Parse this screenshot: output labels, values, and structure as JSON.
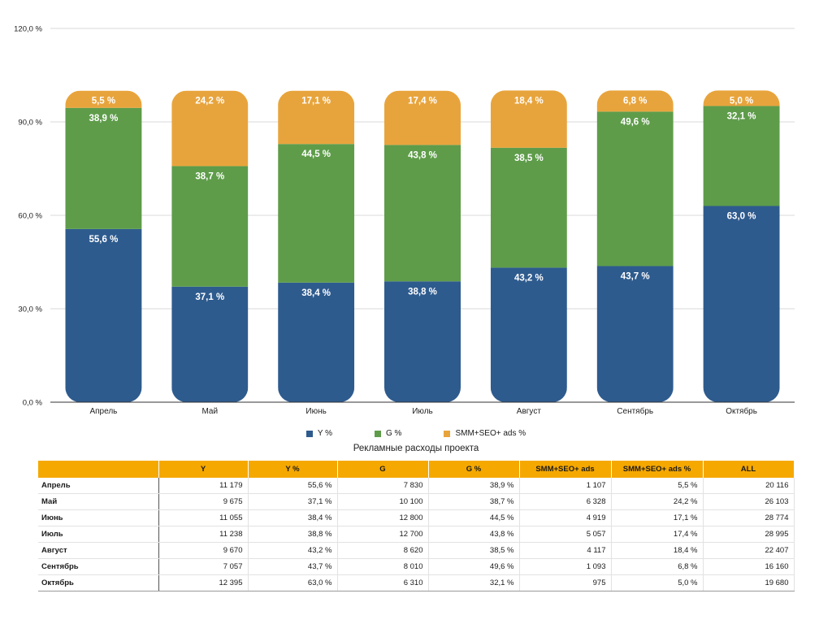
{
  "chart_data": {
    "type": "bar",
    "stacked": true,
    "categories": [
      "Апрель",
      "Май",
      "Июнь",
      "Июль",
      "Август",
      "Сентябрь",
      "Октябрь"
    ],
    "series": [
      {
        "name": "Y %",
        "color": "#2e5b8e",
        "values": [
          55.6,
          37.1,
          38.4,
          38.8,
          43.2,
          43.7,
          63.0
        ],
        "labels": [
          "55,6 %",
          "37,1 %",
          "38,4 %",
          "38,8 %",
          "43,2 %",
          "43,7 %",
          "63,0 %"
        ]
      },
      {
        "name": "G %",
        "color": "#5e9c4a",
        "values": [
          38.9,
          38.7,
          44.5,
          43.8,
          38.5,
          49.6,
          32.1
        ],
        "labels": [
          "38,9 %",
          "38,7 %",
          "44,5 %",
          "43,8 %",
          "38,5 %",
          "49,6 %",
          "32,1 %"
        ]
      },
      {
        "name": "SMM+SEO+ ads %",
        "color": "#e8a43c",
        "values": [
          5.5,
          24.2,
          17.1,
          17.4,
          18.4,
          6.8,
          5.0
        ],
        "labels": [
          "5,5 %",
          "24,2 %",
          "17,1 %",
          "17,4 %",
          "18,4 %",
          "6,8 %",
          "5,0 %"
        ]
      }
    ],
    "ylim": [
      0,
      120
    ],
    "yticks": [
      0,
      30,
      60,
      90,
      120
    ],
    "ytick_labels": [
      "0,0 %",
      "30,0 %",
      "60,0 %",
      "90,0 %",
      "120,0 %"
    ],
    "grid": true,
    "legend_position": "bottom-center"
  },
  "legend": {
    "items": [
      {
        "label": "Y %",
        "color": "#2e5b8e"
      },
      {
        "label": "G %",
        "color": "#5e9c4a"
      },
      {
        "label": "SMM+SEO+ ads %",
        "color": "#e8a43c"
      }
    ]
  },
  "table": {
    "caption": "Рекламные расходы проекта",
    "header_color": "#f5a800",
    "columns": [
      "",
      "Y",
      "Y %",
      "G",
      "G %",
      "SMM+SEO+ ads",
      "SMM+SEO+ ads %",
      "ALL"
    ],
    "rows": [
      [
        "Апрель",
        "11 179",
        "55,6 %",
        "7 830",
        "38,9 %",
        "1 107",
        "5,5 %",
        "20 116"
      ],
      [
        "Май",
        "9 675",
        "37,1 %",
        "10 100",
        "38,7 %",
        "6 328",
        "24,2 %",
        "26 103"
      ],
      [
        "Июнь",
        "11 055",
        "38,4 %",
        "12 800",
        "44,5 %",
        "4 919",
        "17,1 %",
        "28 774"
      ],
      [
        "Июль",
        "11 238",
        "38,8 %",
        "12 700",
        "43,8 %",
        "5 057",
        "17,4 %",
        "28 995"
      ],
      [
        "Август",
        "9 670",
        "43,2 %",
        "8 620",
        "38,5 %",
        "4 117",
        "18,4 %",
        "22 407"
      ],
      [
        "Сентябрь",
        "7 057",
        "43,7 %",
        "8 010",
        "49,6 %",
        "1 093",
        "6,8 %",
        "16 160"
      ],
      [
        "Октябрь",
        "12 395",
        "63,0 %",
        "6 310",
        "32,1 %",
        "975",
        "5,0 %",
        "19 680"
      ]
    ]
  }
}
